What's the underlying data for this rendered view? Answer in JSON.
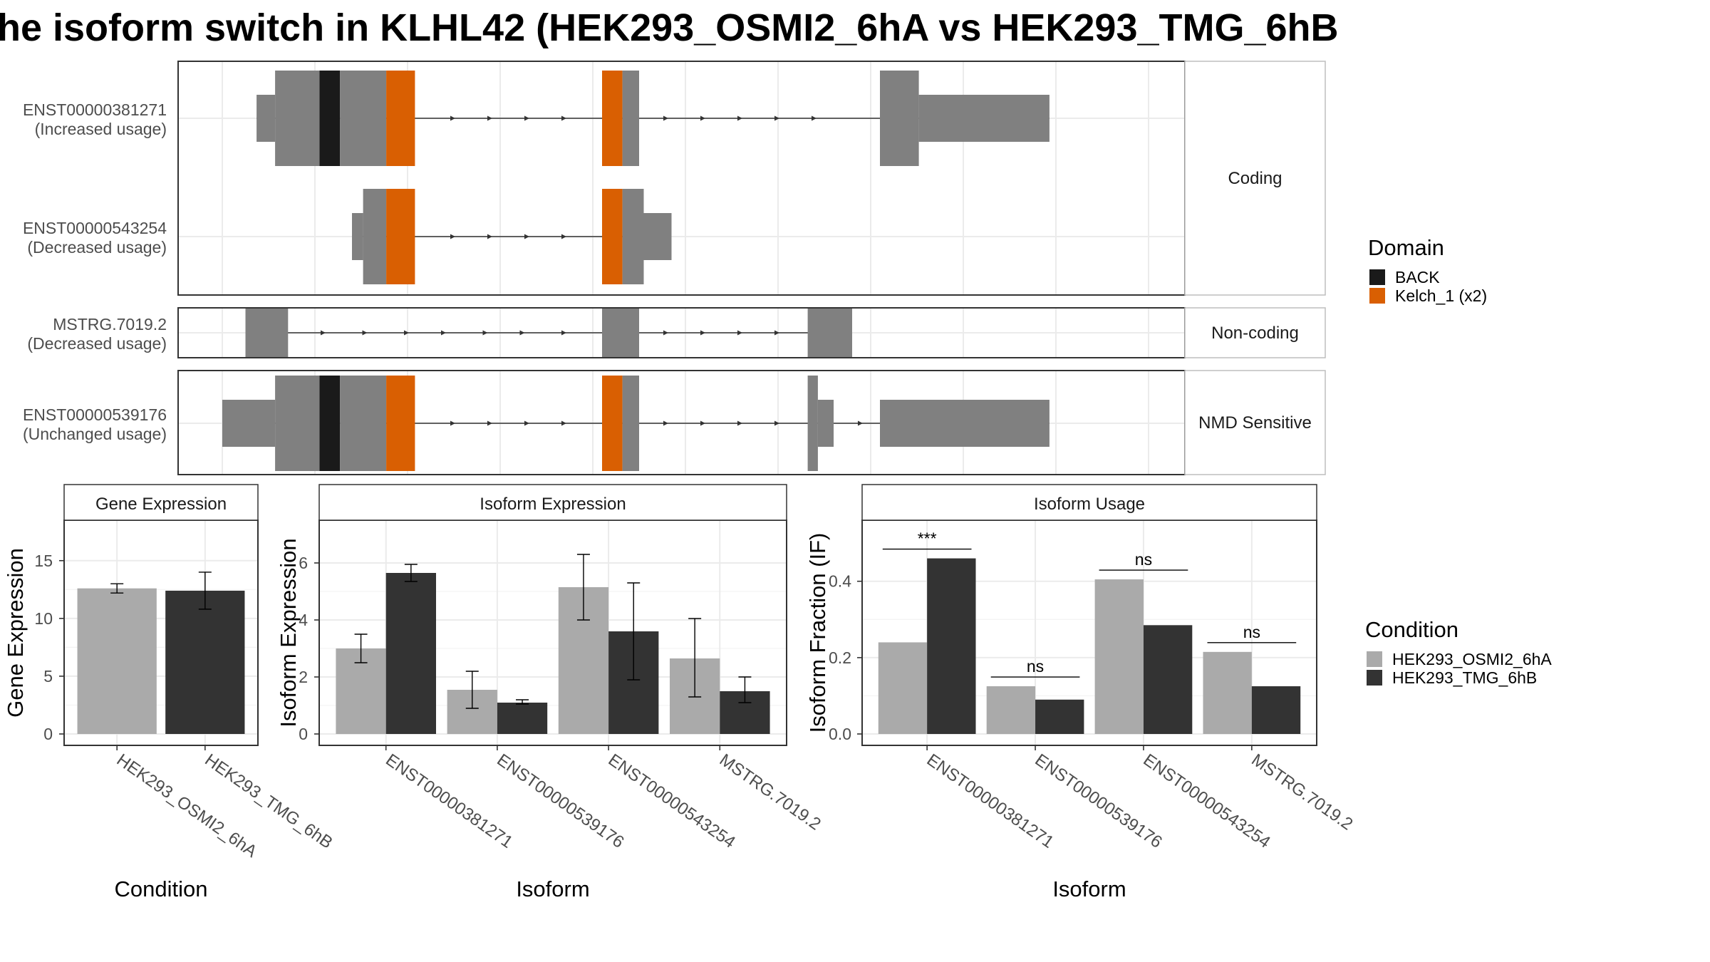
{
  "title": "he isoform switch in KLHL42 (HEK293_OSMI2_6hA vs HEK293_TMG_6hB",
  "colors": {
    "exon": "#808080",
    "intron": "#333333",
    "domain_back": "#1a1a1a",
    "domain_kelch": "#d95f02",
    "cond_a": "#aaaaaa",
    "cond_b": "#333333",
    "grid": "#ebebeb",
    "strip_bg": "#ffffff"
  },
  "structure": {
    "genomic_range": [
      0,
      1000
    ],
    "gridlines": [
      0,
      100,
      200,
      300,
      400,
      500,
      600,
      700,
      800,
      900,
      1000
    ],
    "domain_legend": {
      "title": "Domain",
      "items": [
        {
          "label": "BACK",
          "color_key": "domain_back"
        },
        {
          "label": "Kelch_1 (x2)",
          "color_key": "domain_kelch"
        }
      ]
    },
    "panels": [
      {
        "strip": "Coding",
        "transcripts": [
          {
            "id": "ENST00000381271",
            "usage": "(Increased usage)",
            "exons": [
              {
                "s": 37,
                "e": 57,
                "h": "utr"
              },
              {
                "s": 57,
                "e": 105,
                "h": "cds"
              },
              {
                "s": 105,
                "e": 127,
                "h": "cds",
                "dom": "domain_back"
              },
              {
                "s": 127,
                "e": 177,
                "h": "cds"
              },
              {
                "s": 177,
                "e": 200,
                "h": "cds",
                "dom": "domain_kelch"
              },
              {
                "s": 200,
                "e": 208,
                "h": "cds",
                "dom": "domain_kelch"
              },
              {
                "s": 410,
                "e": 432,
                "h": "cds",
                "dom": "domain_kelch"
              },
              {
                "s": 432,
                "e": 450,
                "h": "cds"
              },
              {
                "s": 710,
                "e": 752,
                "h": "cds"
              },
              {
                "s": 752,
                "e": 893,
                "h": "utr"
              }
            ],
            "arrows": [
              250,
              290,
              330,
              370,
              480,
              520,
              560,
              600,
              640
            ]
          },
          {
            "id": "ENST00000543254",
            "usage": "(Decreased usage)",
            "exons": [
              {
                "s": 140,
                "e": 152,
                "h": "utr"
              },
              {
                "s": 152,
                "e": 177,
                "h": "cds"
              },
              {
                "s": 177,
                "e": 200,
                "h": "cds",
                "dom": "domain_kelch"
              },
              {
                "s": 200,
                "e": 208,
                "h": "cds",
                "dom": "domain_kelch"
              },
              {
                "s": 410,
                "e": 432,
                "h": "cds",
                "dom": "domain_kelch"
              },
              {
                "s": 432,
                "e": 455,
                "h": "cds"
              },
              {
                "s": 455,
                "e": 485,
                "h": "utr"
              }
            ],
            "arrows": [
              250,
              290,
              330,
              370
            ]
          }
        ]
      },
      {
        "strip": "Non-coding",
        "transcripts": [
          {
            "id": "MSTRG.7019.2",
            "usage": "(Decreased usage)",
            "exons": [
              {
                "s": 25,
                "e": 71,
                "h": "nc"
              },
              {
                "s": 410,
                "e": 450,
                "h": "nc"
              },
              {
                "s": 632,
                "e": 680,
                "h": "nc"
              }
            ],
            "arrows": [
              110,
              155,
              200,
              240,
              285,
              325,
              370,
              480,
              520,
              560,
              600
            ]
          }
        ]
      },
      {
        "strip": "NMD Sensitive",
        "transcripts": [
          {
            "id": "ENST00000539176",
            "usage": "(Unchanged usage)",
            "exons": [
              {
                "s": 0,
                "e": 57,
                "h": "utr"
              },
              {
                "s": 57,
                "e": 105,
                "h": "cds"
              },
              {
                "s": 105,
                "e": 127,
                "h": "cds",
                "dom": "domain_back"
              },
              {
                "s": 127,
                "e": 177,
                "h": "cds"
              },
              {
                "s": 177,
                "e": 200,
                "h": "cds",
                "dom": "domain_kelch"
              },
              {
                "s": 200,
                "e": 208,
                "h": "cds",
                "dom": "domain_kelch"
              },
              {
                "s": 410,
                "e": 432,
                "h": "cds",
                "dom": "domain_kelch"
              },
              {
                "s": 432,
                "e": 450,
                "h": "cds"
              },
              {
                "s": 632,
                "e": 643,
                "h": "cds"
              },
              {
                "s": 643,
                "e": 660,
                "h": "utr"
              },
              {
                "s": 710,
                "e": 893,
                "h": "utr"
              }
            ],
            "arrows": [
              250,
              290,
              330,
              370,
              480,
              520,
              560,
              600,
              690
            ]
          }
        ]
      }
    ]
  },
  "chart_data": [
    {
      "type": "bar",
      "strip": "Gene Expression",
      "xlabel": "Condition",
      "ylabel": "Gene Expression",
      "ylim": [
        0,
        18.5
      ],
      "yticks": [
        0,
        5,
        10,
        15
      ],
      "categories": [
        "HEK293_OSMI2_6hA",
        "HEK293_TMG_6hB"
      ],
      "series": [
        {
          "name": "HEK293_OSMI2_6hA",
          "color_key": "cond_a",
          "values": [
            12.6,
            null
          ],
          "err_low": [
            12.2,
            null
          ],
          "err_high": [
            13.0,
            null
          ]
        },
        {
          "name": "HEK293_TMG_6hB",
          "color_key": "cond_b",
          "values": [
            null,
            12.4
          ],
          "err_low": [
            null,
            10.8
          ],
          "err_high": [
            null,
            14.0
          ]
        }
      ],
      "single_bar_per_category": true
    },
    {
      "type": "bar",
      "strip": "Isoform Expression",
      "xlabel": "Isoform",
      "ylabel": "Isoform Expression",
      "ylim": [
        0,
        7.5
      ],
      "yticks": [
        0,
        2,
        4,
        6
      ],
      "categories": [
        "ENST00000381271",
        "ENST00000539176",
        "ENST00000543254",
        "MSTRG.7019.2"
      ],
      "series": [
        {
          "name": "HEK293_OSMI2_6hA",
          "color_key": "cond_a",
          "values": [
            3.0,
            1.55,
            5.15,
            2.65
          ],
          "err_low": [
            2.5,
            0.9,
            4.0,
            1.3
          ],
          "err_high": [
            3.5,
            2.2,
            6.3,
            4.05
          ]
        },
        {
          "name": "HEK293_TMG_6hB",
          "color_key": "cond_b",
          "values": [
            5.65,
            1.1,
            3.6,
            1.5
          ],
          "err_low": [
            5.35,
            1.05,
            1.9,
            1.1
          ],
          "err_high": [
            5.95,
            1.2,
            5.3,
            2.0
          ]
        }
      ]
    },
    {
      "type": "bar",
      "strip": "Isoform Usage",
      "xlabel": "Isoform",
      "ylabel": "Isoform Fraction (IF)",
      "ylim": [
        0,
        0.56
      ],
      "yticks": [
        0.0,
        0.2,
        0.4
      ],
      "ytick_labels": [
        "0.0",
        "0.2",
        "0.4"
      ],
      "categories": [
        "ENST00000381271",
        "ENST00000539176",
        "ENST00000543254",
        "MSTRG.7019.2"
      ],
      "series": [
        {
          "name": "HEK293_OSMI2_6hA",
          "color_key": "cond_a",
          "values": [
            0.24,
            0.125,
            0.405,
            0.215
          ]
        },
        {
          "name": "HEK293_TMG_6hB",
          "color_key": "cond_b",
          "values": [
            0.46,
            0.09,
            0.285,
            0.125
          ]
        }
      ],
      "significance": [
        "***",
        "ns",
        "ns",
        "ns"
      ]
    }
  ],
  "condition_legend": {
    "title": "Condition",
    "items": [
      {
        "label": "HEK293_OSMI2_6hA",
        "color_key": "cond_a"
      },
      {
        "label": "HEK293_TMG_6hB",
        "color_key": "cond_b"
      }
    ]
  }
}
